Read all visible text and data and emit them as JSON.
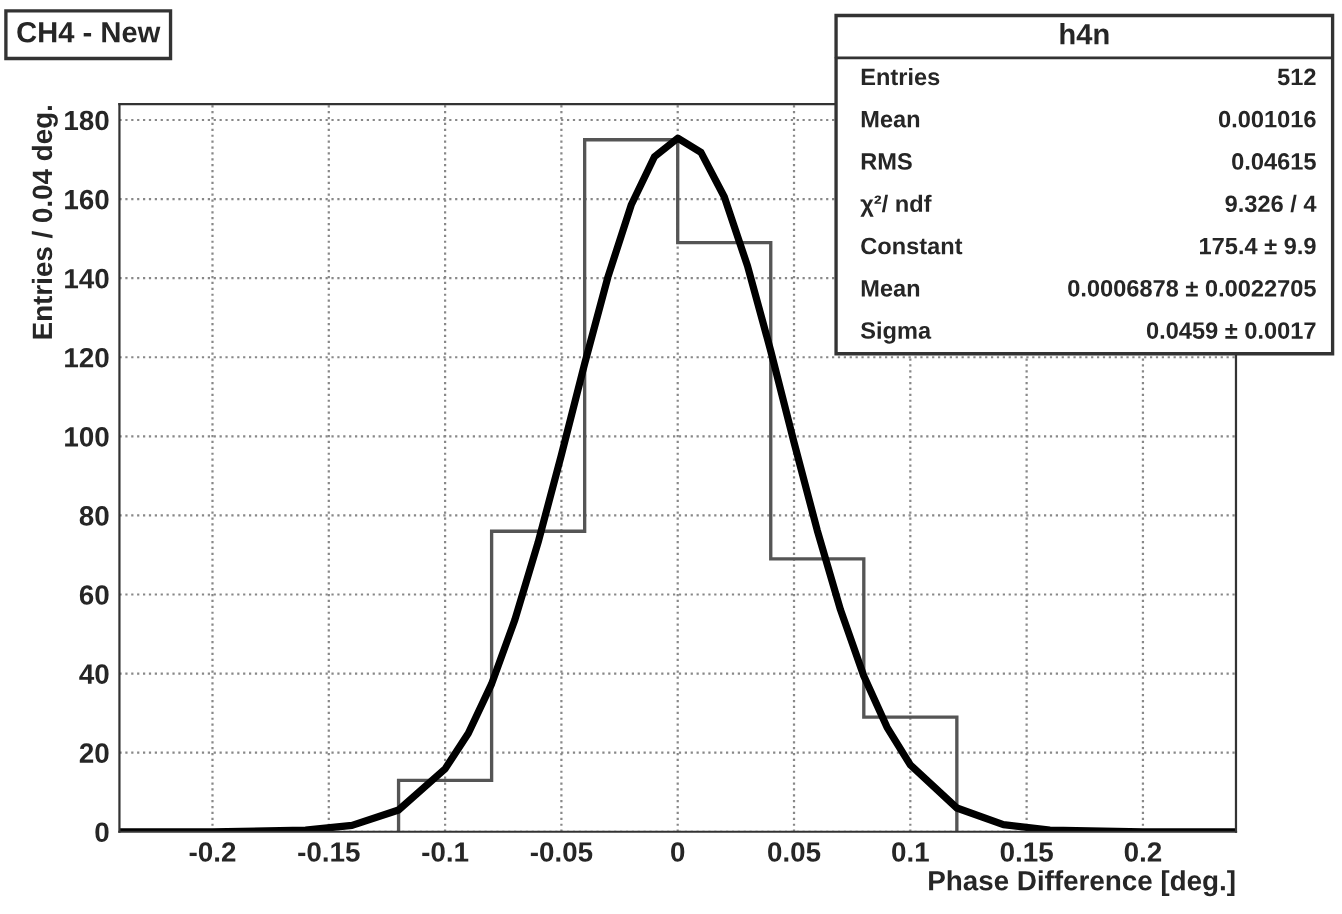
{
  "chart_data": {
    "type": "histogram",
    "title": "CH4 - New",
    "xlabel": "Phase Difference [deg.]",
    "ylabel": "Entries / 0.04 deg.",
    "bins": [
      -0.12,
      -0.08,
      -0.04,
      0,
      0.04,
      0.08,
      0.12
    ],
    "values": [
      13,
      76,
      175,
      149,
      69,
      29
    ],
    "color": "#555555",
    "series": [
      {
        "type": "line",
        "color": "#000000",
        "x": [
          -0.24,
          -0.2,
          -0.16,
          -0.14,
          -0.12,
          -0.1,
          -0.09,
          -0.08,
          -0.07,
          -0.06,
          -0.05,
          -0.04,
          -0.03,
          -0.02,
          -0.01,
          0,
          0.01,
          0.02,
          0.03,
          0.04,
          0.05,
          0.06,
          0.07,
          0.08,
          0.09,
          0.1,
          0.12,
          0.14,
          0.16,
          0.2,
          0.24
        ],
        "values": [
          0,
          0,
          0.4,
          1.6,
          5.5,
          15.9,
          24.9,
          37.4,
          53.6,
          73.2,
          95.3,
          118.4,
          140.3,
          158.5,
          170.7,
          175.4,
          171.8,
          160.6,
          143.1,
          121.6,
          98.5,
          76.2,
          56.1,
          39.4,
          26.4,
          16.9,
          6.0,
          1.8,
          0.4,
          0,
          0
        ]
      }
    ],
    "xlim": [
      -0.24,
      0.24
    ],
    "ylim": [
      0,
      184
    ],
    "xticks": [
      -0.2,
      -0.15,
      -0.1,
      -0.05,
      0,
      0.05,
      0.1,
      0.15,
      0.2
    ],
    "yticks": [
      0,
      20,
      40,
      60,
      80,
      100,
      120,
      140,
      160,
      180
    ],
    "grid": true,
    "annotations": [
      "h4n",
      "Entries",
      "512",
      "Mean",
      "0.001016",
      "RMS",
      "0.04615",
      "χ²/ ndf",
      "9.326 / 4",
      "Constant",
      "175.4 ± 9.9",
      "Mean",
      "0.0006878 ± 0.0022705",
      "Sigma",
      "0.0459 ± 0.0017"
    ]
  }
}
